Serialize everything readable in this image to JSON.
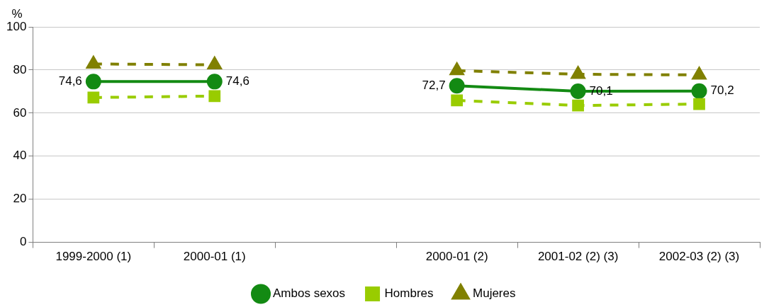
{
  "chart_data": {
    "type": "line",
    "ylabel": "%",
    "categories": [
      "1999-2000 (1)",
      "2000-01 (1)",
      null,
      "2000-01 (2)",
      "2001-02 (2) (3)",
      "2002-03 (2) (3)"
    ],
    "series": [
      {
        "name": "Ambos sexos",
        "color": "#138a13",
        "marker": "circle",
        "line_style": "solid",
        "values": [
          74.6,
          74.6,
          null,
          72.7,
          70.1,
          70.2
        ],
        "value_labels": [
          "74,6",
          "74,6",
          null,
          "72,7",
          "70,1",
          "70,2"
        ]
      },
      {
        "name": "Hombres",
        "color": "#99cc00",
        "marker": "square",
        "line_style": "dashed",
        "values": [
          67.2,
          67.9,
          null,
          65.9,
          63.5,
          64.2
        ]
      },
      {
        "name": "Mujeres",
        "color": "#808000",
        "marker": "triangle",
        "line_style": "dashed",
        "values": [
          82.8,
          82.4,
          null,
          79.7,
          78.0,
          77.7
        ]
      }
    ],
    "ylim": [
      0,
      100
    ],
    "yticks": [
      0,
      20,
      40,
      60,
      80,
      100
    ],
    "grid": "y",
    "legend": "bottom"
  }
}
